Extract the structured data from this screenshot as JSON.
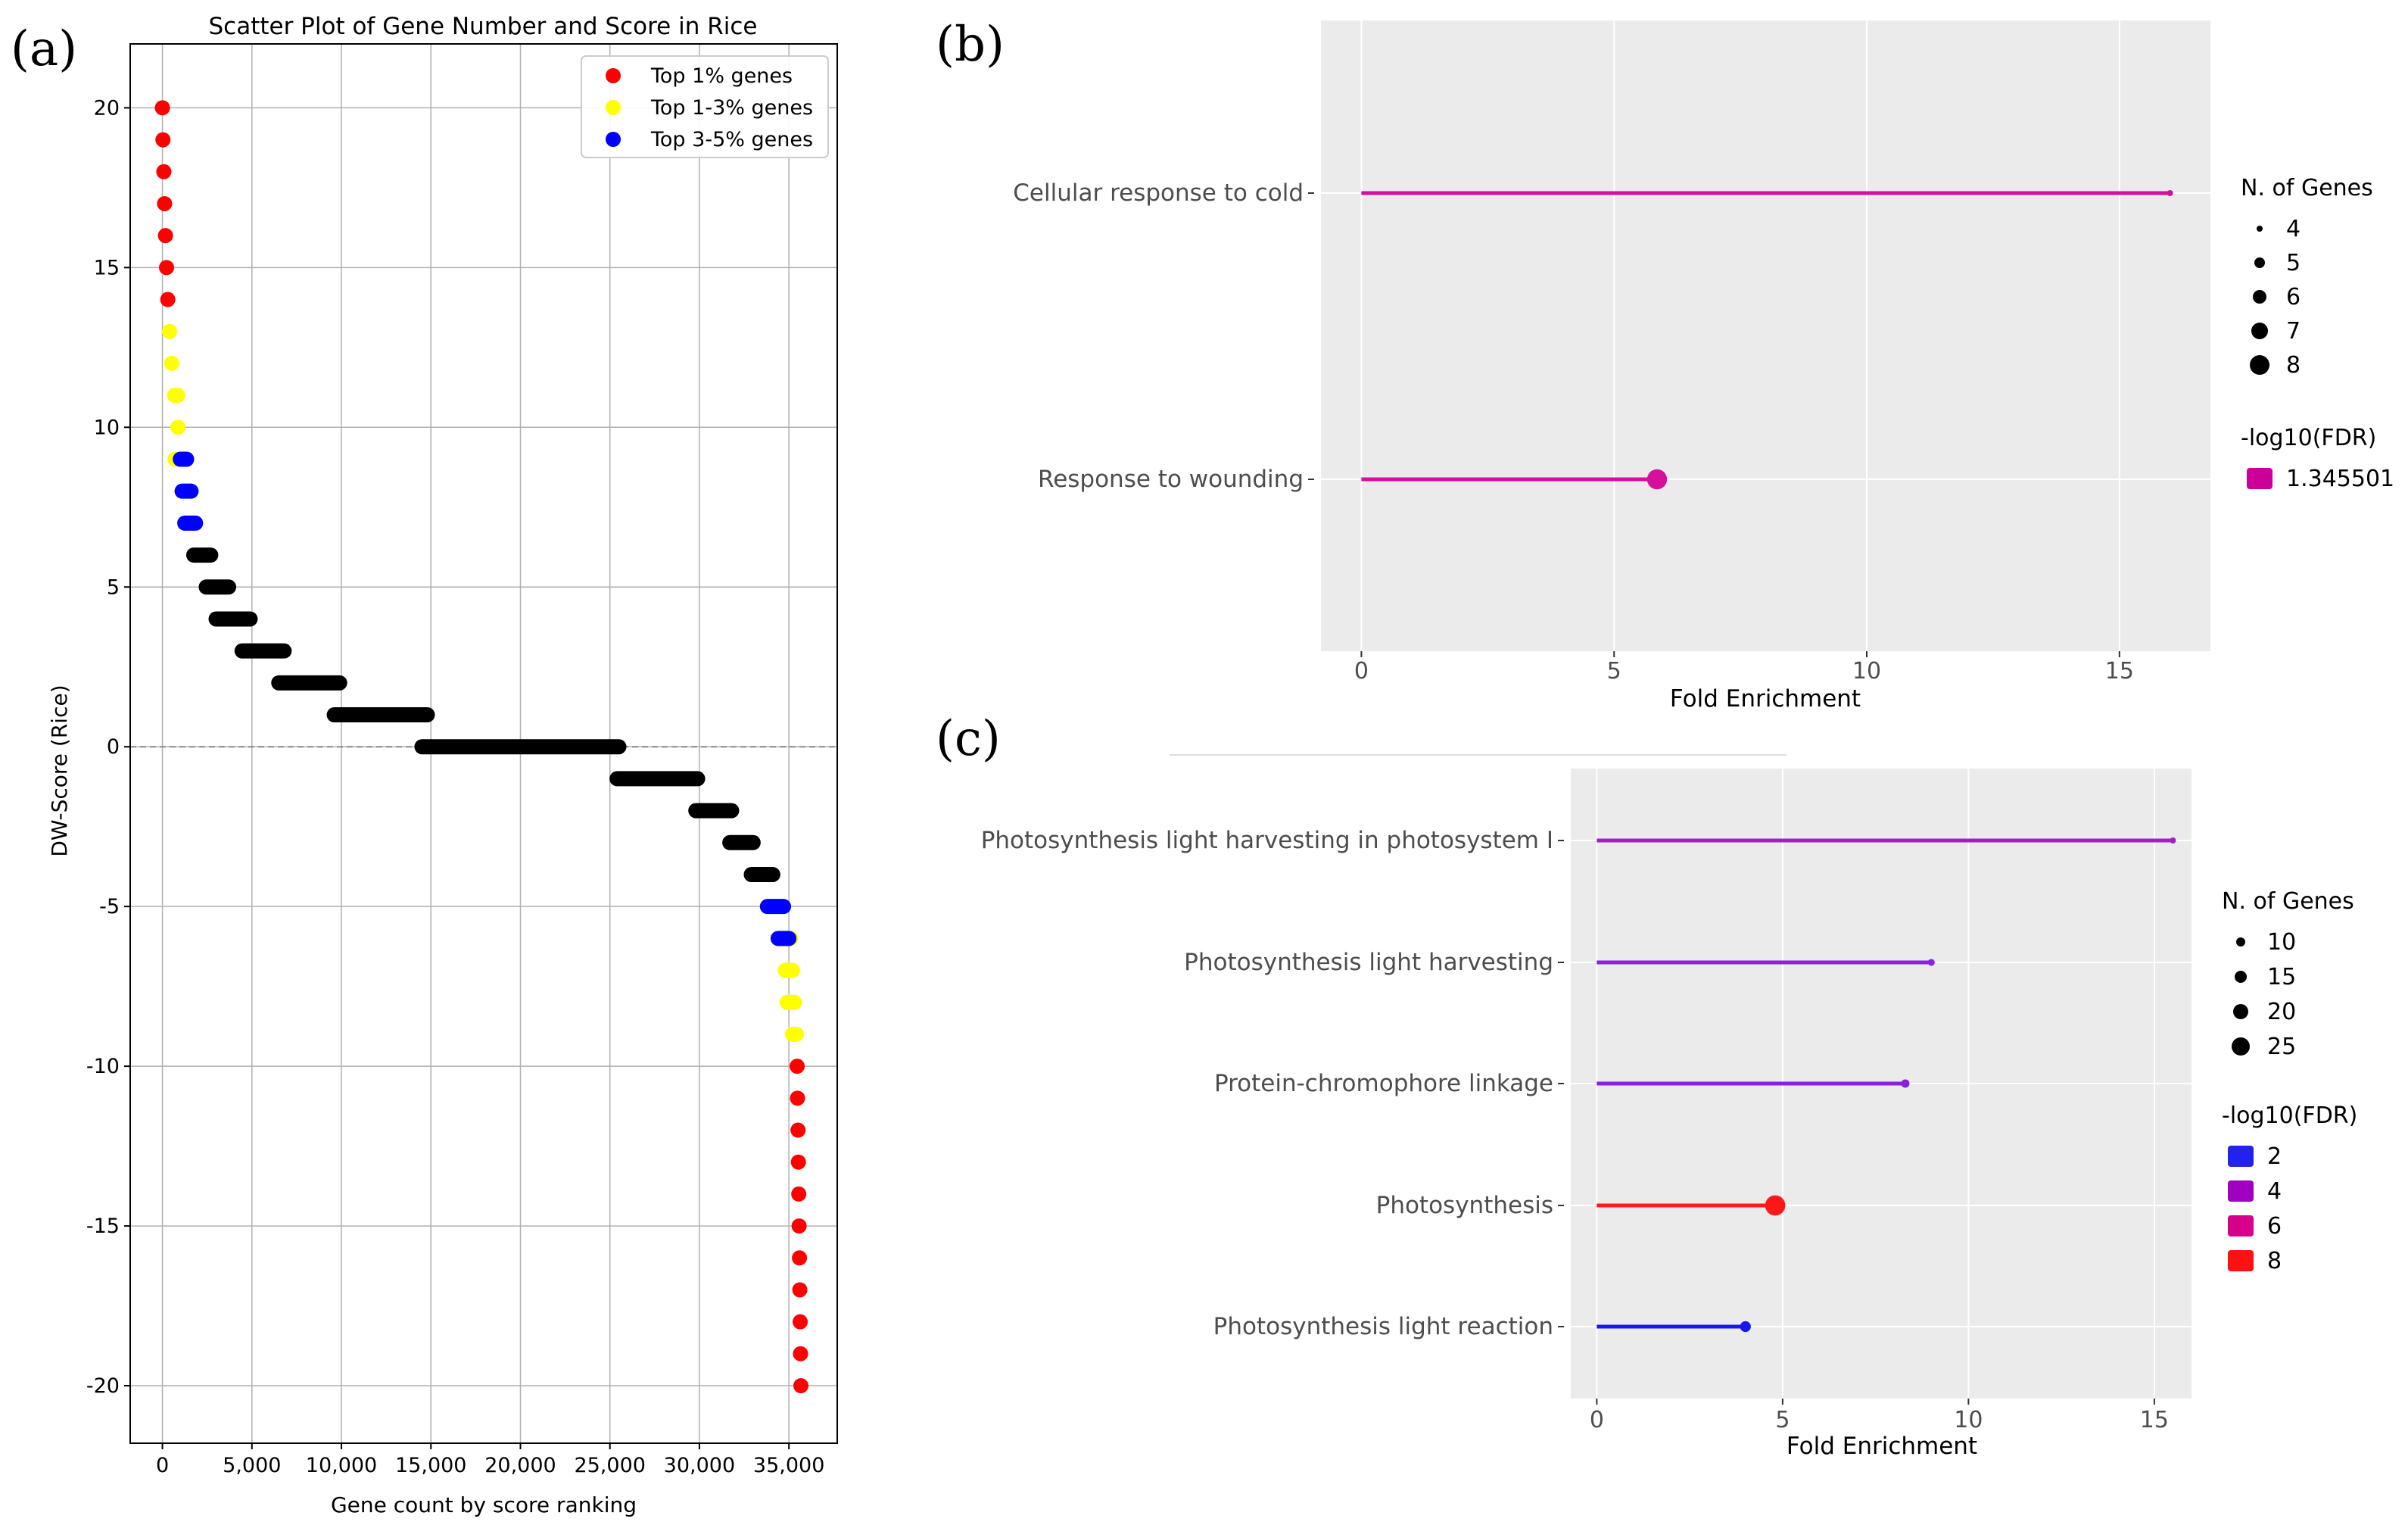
{
  "panels": {
    "a": {
      "letter": "(a)"
    },
    "b": {
      "letter": "(b)"
    },
    "c": {
      "letter": "(c)"
    }
  },
  "chart_data": [
    {
      "panel": "a",
      "type": "scatter",
      "title": "Scatter Plot of Gene Number and Score in Rice",
      "xlabel": "Gene count by score ranking",
      "ylabel": "DW-Score (Rice)",
      "xlim": [
        -1800,
        37700
      ],
      "ylim": [
        -21.8,
        22
      ],
      "xticks": [
        0,
        5000,
        10000,
        15000,
        20000,
        25000,
        30000,
        35000
      ],
      "xtick_labels": [
        "0",
        "5,000",
        "10,000",
        "15,000",
        "20,000",
        "25,000",
        "30,000",
        "35,000"
      ],
      "yticks": [
        20,
        15,
        10,
        5,
        0,
        -5,
        -10,
        -15,
        -20
      ],
      "ytick_labels": [
        "20",
        "15",
        "10",
        "5",
        "0",
        "-5",
        "-10",
        "-15",
        "-20"
      ],
      "grid": true,
      "reference_line_y": 0,
      "legend_position": "top-right",
      "series": [
        {
          "name": "Top 1% genes",
          "color": "#ff0000",
          "ranges": [
            [
              20,
              0,
              0
            ],
            [
              19,
              30,
              70
            ],
            [
              18,
              80,
              110
            ],
            [
              17,
              120,
              160
            ],
            [
              16,
              170,
              220
            ],
            [
              15,
              230,
              290
            ],
            [
              14,
              300,
              380
            ],
            [
              -10,
              35460,
              35470
            ],
            [
              -11,
              35480,
              35500
            ],
            [
              -12,
              35510,
              35520
            ],
            [
              -13,
              35530,
              35540
            ],
            [
              -14,
              35550,
              35560
            ],
            [
              -15,
              35570,
              35580
            ],
            [
              -16,
              35590,
              35600
            ],
            [
              -17,
              35610,
              35620
            ],
            [
              -18,
              35630,
              35640
            ],
            [
              -19,
              35650,
              35660
            ],
            [
              -20,
              35670,
              35680
            ]
          ]
        },
        {
          "name": "Top 1-3% genes",
          "color": "#ffff00",
          "ranges": [
            [
              13,
              400,
              500
            ],
            [
              12,
              520,
              650
            ],
            [
              11,
              680,
              850
            ],
            [
              10,
              870,
              1000
            ],
            [
              9,
              700,
              760
            ],
            [
              -6,
              35100,
              35250
            ],
            [
              -7,
              34800,
              35200
            ],
            [
              -8,
              34900,
              35300
            ],
            [
              -9,
              35200,
              35420
            ]
          ]
        },
        {
          "name": "Top 3-5% genes",
          "color": "#0000ff",
          "ranges": [
            [
              9,
              1000,
              1350
            ],
            [
              8,
              1100,
              1600
            ],
            [
              7,
              1250,
              1850
            ],
            [
              -5,
              33800,
              34700
            ],
            [
              -6,
              34400,
              35000
            ]
          ]
        },
        {
          "name": "",
          "color": "#000000",
          "ranges": [
            [
              6,
              1750,
              2700
            ],
            [
              5,
              2450,
              3700
            ],
            [
              4,
              3000,
              4900
            ],
            [
              3,
              4450,
              6800
            ],
            [
              2,
              6500,
              9900
            ],
            [
              1,
              9600,
              14800
            ],
            [
              0,
              14500,
              25500
            ],
            [
              -1,
              25400,
              29900
            ],
            [
              -2,
              29800,
              31800
            ],
            [
              -3,
              31700,
              33000
            ],
            [
              -4,
              32900,
              34100
            ]
          ]
        }
      ]
    },
    {
      "panel": "b",
      "type": "lollipop",
      "xlabel": "Fold Enrichment",
      "xlim": [
        -0.8,
        16.8
      ],
      "xticks": [
        0,
        5,
        10,
        15
      ],
      "categories": [
        "Cellular response to cold",
        "Response to wounding"
      ],
      "values": [
        16.0,
        5.85
      ],
      "n_genes": [
        4,
        8
      ],
      "colors": [
        "#d4109c",
        "#d4109c"
      ],
      "size_legend": {
        "title": "N. of Genes",
        "labels": [
          "4",
          "5",
          "6",
          "7",
          "8"
        ]
      },
      "color_legend": {
        "title": "-log10(FDR)",
        "labels": [
          "1.345501"
        ],
        "colors": [
          "#cc0099"
        ]
      }
    },
    {
      "panel": "c",
      "type": "lollipop",
      "xlabel": "Fold Enrichment",
      "xlim": [
        -0.7,
        16.0
      ],
      "xticks": [
        0,
        5,
        10,
        15
      ],
      "categories": [
        "Photosynthesis light harvesting in photosystem I",
        "Photosynthesis light harvesting",
        "Protein-chromophore linkage",
        "Photosynthesis",
        "Photosynthesis light reaction"
      ],
      "values": [
        15.5,
        9.0,
        8.3,
        4.8,
        4.0
      ],
      "n_genes": [
        8,
        9,
        11,
        26,
        14
      ],
      "colors": [
        "#a020c8",
        "#8a20e0",
        "#8a20e0",
        "#ff1818",
        "#1818ee"
      ],
      "size_legend": {
        "title": "N. of Genes",
        "labels": [
          "10",
          "15",
          "20",
          "25"
        ]
      },
      "color_legend": {
        "title": "-log10(FDR)",
        "labels": [
          "2",
          "4",
          "6",
          "8"
        ],
        "colors": [
          "#2222ee",
          "#a000c0",
          "#d6008a",
          "#ff1111"
        ]
      }
    }
  ]
}
